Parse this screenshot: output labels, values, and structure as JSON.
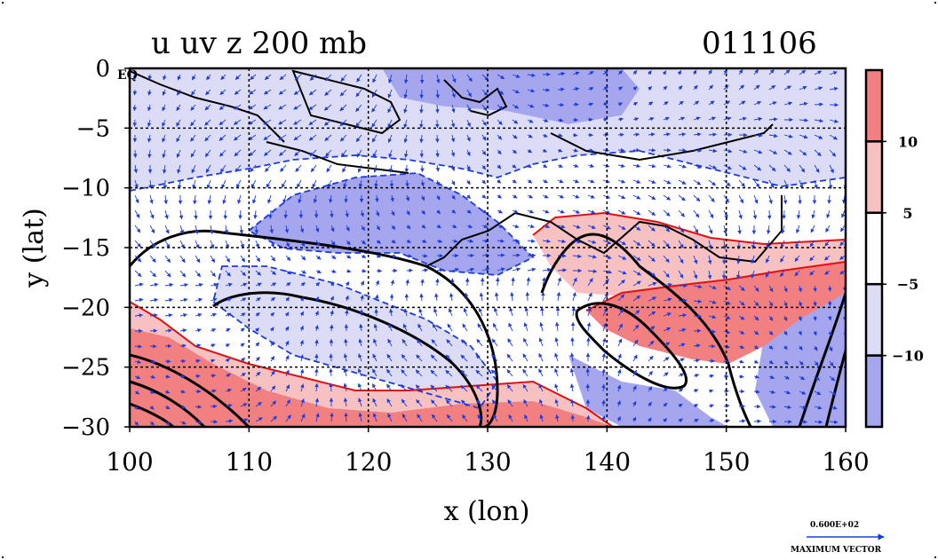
{
  "chart_data": {
    "type": "heatmap",
    "title": "u uv z 200 mb",
    "date_label": "011106",
    "xlabel": "x (lon)",
    "ylabel": "y (lat)",
    "xlim": [
      100,
      160
    ],
    "ylim": [
      -30,
      0
    ],
    "x_ticks": [
      "100",
      "110",
      "120",
      "130",
      "140",
      "150",
      "160"
    ],
    "y_ticks": [
      "0",
      "−5",
      "−10",
      "−15",
      "−20",
      "−25",
      "−30"
    ],
    "y_tick_values": [
      0,
      -5,
      -10,
      -15,
      -20,
      -25,
      -30
    ],
    "x_tick_values": [
      100,
      110,
      120,
      130,
      140,
      150,
      160
    ],
    "eq_label": "EQ",
    "grid": true,
    "colorbar": {
      "labels": [
        "10",
        "5",
        "−5",
        "−10"
      ],
      "bins": [
        {
          "range": "> 10",
          "color": "#f28080"
        },
        {
          "range": "5 to 10",
          "color": "#f7c1c1"
        },
        {
          "range": "-5 to 5",
          "color": "#ffffff"
        },
        {
          "range": "-10 to -5",
          "color": "#dcdcf7"
        },
        {
          "range": "< -10",
          "color": "#a6a6ef"
        }
      ]
    },
    "vector_legend": {
      "value_text": "0.600E+02",
      "caption": "MAXIMUM VECTOR"
    },
    "colors": {
      "strong_positive": "#f28080",
      "weak_positive": "#f7c1c1",
      "weak_negative": "#dcdcf7",
      "strong_negative": "#a6a6ef",
      "positive_contour": "#e01010",
      "negative_contour": "#1a3be0",
      "geopotential_contour": "#000000",
      "wind_vectors": "#1a3be0"
    }
  }
}
